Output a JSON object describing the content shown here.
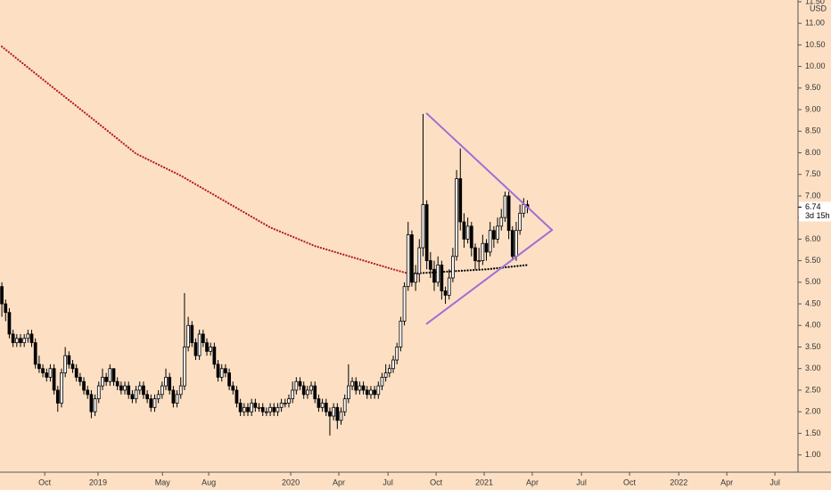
{
  "chart_data": {
    "type": "candlestick",
    "unit": "USD",
    "background": "#fde0c4",
    "up_color": "#ffffff",
    "down_color": "#000000",
    "candles": [
      [
        4.9,
        5.0,
        4.2,
        4.5
      ],
      [
        4.5,
        4.6,
        4.1,
        4.3
      ],
      [
        4.3,
        4.4,
        3.7,
        3.8
      ],
      [
        3.8,
        3.9,
        3.5,
        3.6
      ],
      [
        3.6,
        3.8,
        3.5,
        3.7
      ],
      [
        3.7,
        3.8,
        3.5,
        3.6
      ],
      [
        3.6,
        3.8,
        3.5,
        3.7
      ],
      [
        3.7,
        3.9,
        3.6,
        3.8
      ],
      [
        3.8,
        3.9,
        3.5,
        3.6
      ],
      [
        3.6,
        3.7,
        3.0,
        3.1
      ],
      [
        3.1,
        3.3,
        2.9,
        3.0
      ],
      [
        3.0,
        3.1,
        2.8,
        2.9
      ],
      [
        2.9,
        3.0,
        2.7,
        2.8
      ],
      [
        2.8,
        3.1,
        2.7,
        3.0
      ],
      [
        3.0,
        3.1,
        2.4,
        2.5
      ],
      [
        2.5,
        2.6,
        2.0,
        2.2
      ],
      [
        2.2,
        3.0,
        2.1,
        2.9
      ],
      [
        2.9,
        3.5,
        2.8,
        3.3
      ],
      [
        3.3,
        3.4,
        3.0,
        3.1
      ],
      [
        3.1,
        3.2,
        2.9,
        3.0
      ],
      [
        3.0,
        3.1,
        2.7,
        2.8
      ],
      [
        2.8,
        2.9,
        2.6,
        2.7
      ],
      [
        2.7,
        2.8,
        2.4,
        2.5
      ],
      [
        2.5,
        2.6,
        2.3,
        2.4
      ],
      [
        2.4,
        2.5,
        1.85,
        2.0
      ],
      [
        2.0,
        2.4,
        1.9,
        2.3
      ],
      [
        2.3,
        2.7,
        2.2,
        2.6
      ],
      [
        2.6,
        3.0,
        2.5,
        2.8
      ],
      [
        2.8,
        2.9,
        2.6,
        2.7
      ],
      [
        2.7,
        3.1,
        2.6,
        3.0
      ],
      [
        3.0,
        3.0,
        2.6,
        2.7
      ],
      [
        2.7,
        2.8,
        2.5,
        2.6
      ],
      [
        2.6,
        2.7,
        2.4,
        2.5
      ],
      [
        2.5,
        2.7,
        2.4,
        2.6
      ],
      [
        2.6,
        2.7,
        2.3,
        2.4
      ],
      [
        2.4,
        2.5,
        2.2,
        2.3
      ],
      [
        2.3,
        2.6,
        2.2,
        2.5
      ],
      [
        2.5,
        2.7,
        2.4,
        2.6
      ],
      [
        2.6,
        2.7,
        2.3,
        2.4
      ],
      [
        2.4,
        2.5,
        2.2,
        2.3
      ],
      [
        2.3,
        2.4,
        2.0,
        2.1
      ],
      [
        2.1,
        2.4,
        2.0,
        2.3
      ],
      [
        2.3,
        2.5,
        2.2,
        2.4
      ],
      [
        2.4,
        2.7,
        2.3,
        2.6
      ],
      [
        2.6,
        3.0,
        2.5,
        2.8
      ],
      [
        2.8,
        2.9,
        2.4,
        2.5
      ],
      [
        2.5,
        2.6,
        2.1,
        2.2
      ],
      [
        2.2,
        2.5,
        2.1,
        2.4
      ],
      [
        2.4,
        2.8,
        2.3,
        2.6
      ],
      [
        2.6,
        4.75,
        2.5,
        3.5
      ],
      [
        3.5,
        4.2,
        3.4,
        4.0
      ],
      [
        4.0,
        4.1,
        3.5,
        3.6
      ],
      [
        3.6,
        3.7,
        3.2,
        3.3
      ],
      [
        3.3,
        3.9,
        3.2,
        3.8
      ],
      [
        3.8,
        3.9,
        3.5,
        3.6
      ],
      [
        3.6,
        3.7,
        3.3,
        3.4
      ],
      [
        3.4,
        3.6,
        3.3,
        3.5
      ],
      [
        3.5,
        3.6,
        3.0,
        3.1
      ],
      [
        3.1,
        3.2,
        2.7,
        2.8
      ],
      [
        2.8,
        3.1,
        2.7,
        3.0
      ],
      [
        3.0,
        3.1,
        2.8,
        2.9
      ],
      [
        2.9,
        3.0,
        2.5,
        2.6
      ],
      [
        2.6,
        2.7,
        2.4,
        2.5
      ],
      [
        2.5,
        2.6,
        2.1,
        2.2
      ],
      [
        2.2,
        2.3,
        1.9,
        2.0
      ],
      [
        2.0,
        2.2,
        1.9,
        2.1
      ],
      [
        2.1,
        2.2,
        1.9,
        2.0
      ],
      [
        2.0,
        2.3,
        1.9,
        2.2
      ],
      [
        2.2,
        2.3,
        2.0,
        2.1
      ],
      [
        2.1,
        2.2,
        2.0,
        2.1
      ],
      [
        2.1,
        2.2,
        1.9,
        2.0
      ],
      [
        2.0,
        2.1,
        1.9,
        2.0
      ],
      [
        2.0,
        2.2,
        1.9,
        2.1
      ],
      [
        2.1,
        2.2,
        1.9,
        2.0
      ],
      [
        2.0,
        2.2,
        1.9,
        2.1
      ],
      [
        2.1,
        2.3,
        2.0,
        2.2
      ],
      [
        2.2,
        2.3,
        2.1,
        2.2
      ],
      [
        2.2,
        2.4,
        2.1,
        2.3
      ],
      [
        2.3,
        2.7,
        2.2,
        2.5
      ],
      [
        2.5,
        2.8,
        2.4,
        2.7
      ],
      [
        2.7,
        2.8,
        2.5,
        2.6
      ],
      [
        2.6,
        2.7,
        2.3,
        2.4
      ],
      [
        2.4,
        2.6,
        2.3,
        2.5
      ],
      [
        2.5,
        2.7,
        2.4,
        2.6
      ],
      [
        2.6,
        2.7,
        2.2,
        2.3
      ],
      [
        2.3,
        2.4,
        2.0,
        2.1
      ],
      [
        2.1,
        2.3,
        2.0,
        2.2
      ],
      [
        2.2,
        2.3,
        1.9,
        2.0
      ],
      [
        2.0,
        2.1,
        1.45,
        1.9
      ],
      [
        1.9,
        2.2,
        1.8,
        2.1
      ],
      [
        2.1,
        2.2,
        1.6,
        1.8
      ],
      [
        1.8,
        2.1,
        1.7,
        2.0
      ],
      [
        2.0,
        2.4,
        1.9,
        2.3
      ],
      [
        2.3,
        3.1,
        2.2,
        2.6
      ],
      [
        2.6,
        2.8,
        2.5,
        2.7
      ],
      [
        2.7,
        2.8,
        2.4,
        2.5
      ],
      [
        2.5,
        2.7,
        2.4,
        2.6
      ],
      [
        2.6,
        2.7,
        2.4,
        2.5
      ],
      [
        2.5,
        2.6,
        2.3,
        2.4
      ],
      [
        2.4,
        2.6,
        2.3,
        2.5
      ],
      [
        2.5,
        2.6,
        2.3,
        2.4
      ],
      [
        2.4,
        2.7,
        2.3,
        2.6
      ],
      [
        2.6,
        2.9,
        2.5,
        2.8
      ],
      [
        2.8,
        3.1,
        2.7,
        2.9
      ],
      [
        2.9,
        3.1,
        2.8,
        3.0
      ],
      [
        3.0,
        3.3,
        2.9,
        3.2
      ],
      [
        3.2,
        3.6,
        3.1,
        3.5
      ],
      [
        3.5,
        4.2,
        3.4,
        4.1
      ],
      [
        4.1,
        5.0,
        4.0,
        4.9
      ],
      [
        4.9,
        6.4,
        4.8,
        6.1
      ],
      [
        6.1,
        6.2,
        4.9,
        5.0
      ],
      [
        5.0,
        5.4,
        4.8,
        5.2
      ],
      [
        5.2,
        6.0,
        5.0,
        5.8
      ],
      [
        5.8,
        8.9,
        5.6,
        6.8
      ],
      [
        6.8,
        6.9,
        5.3,
        5.5
      ],
      [
        5.5,
        5.7,
        5.1,
        5.3
      ],
      [
        5.3,
        5.5,
        4.8,
        5.0
      ],
      [
        5.0,
        5.6,
        4.9,
        5.4
      ],
      [
        5.4,
        5.5,
        4.6,
        4.8
      ],
      [
        4.8,
        4.9,
        4.5,
        4.7
      ],
      [
        4.7,
        5.3,
        4.6,
        5.1
      ],
      [
        5.1,
        5.8,
        5.0,
        5.6
      ],
      [
        5.6,
        7.6,
        5.5,
        7.4
      ],
      [
        7.4,
        8.1,
        6.2,
        6.4
      ],
      [
        6.4,
        6.6,
        5.8,
        6.0
      ],
      [
        6.0,
        6.5,
        5.9,
        6.3
      ],
      [
        6.3,
        6.4,
        5.6,
        5.8
      ],
      [
        5.8,
        5.9,
        5.3,
        5.5
      ],
      [
        5.5,
        5.8,
        5.3,
        5.5
      ],
      [
        5.5,
        6.1,
        5.4,
        5.9
      ],
      [
        5.9,
        6.0,
        5.5,
        5.7
      ],
      [
        5.7,
        6.4,
        5.6,
        6.2
      ],
      [
        6.2,
        6.3,
        5.8,
        6.0
      ],
      [
        6.0,
        6.5,
        5.9,
        6.3
      ],
      [
        6.3,
        6.7,
        6.2,
        6.5
      ],
      [
        6.5,
        7.1,
        6.4,
        7.0
      ],
      [
        7.0,
        7.1,
        6.0,
        6.2
      ],
      [
        6.2,
        6.3,
        5.5,
        5.6
      ],
      [
        5.6,
        6.4,
        5.5,
        6.2
      ],
      [
        6.2,
        6.8,
        6.1,
        6.6
      ],
      [
        6.6,
        6.95,
        6.5,
        6.8
      ],
      [
        6.8,
        6.9,
        6.6,
        6.74
      ]
    ],
    "moving_averages": [
      {
        "color": "#b71c1c",
        "x": [
          0,
          12,
          24,
          36,
          48,
          60,
          72,
          84,
          96,
          105,
          110
        ],
        "values": [
          10.46,
          9.63,
          8.81,
          7.98,
          7.47,
          6.87,
          6.27,
          5.84,
          5.53,
          5.3,
          5.18
        ]
      },
      {
        "color": "#000000",
        "x": [
          110,
          120,
          130,
          141
        ],
        "values": [
          5.2,
          5.25,
          5.3,
          5.4
        ]
      }
    ],
    "trendlines": [
      {
        "color": "#9c6fd6",
        "x": [
          114,
          147.6
        ],
        "values": [
          8.91,
          6.21
        ]
      },
      {
        "color": "#9c6fd6",
        "x": [
          114,
          147.6
        ],
        "values": [
          4.04,
          6.21
        ]
      }
    ],
    "last_price": 6.74,
    "countdown": "3d 15h",
    "xlim": [
      -0.5,
      213.6
    ],
    "xticks": [
      {
        "value": 11.5,
        "label": "Oct"
      },
      {
        "value": 25.8,
        "label": "2019"
      },
      {
        "value": 43.1,
        "label": "May"
      },
      {
        "value": 55.5,
        "label": "Aug"
      },
      {
        "value": 77.5,
        "label": "2020"
      },
      {
        "value": 90.4,
        "label": "Apr"
      },
      {
        "value": 103.6,
        "label": "Jul"
      },
      {
        "value": 116.5,
        "label": "Oct"
      },
      {
        "value": 129.4,
        "label": "2021"
      },
      {
        "value": 142.3,
        "label": "Apr"
      },
      {
        "value": 155.5,
        "label": "Jul"
      },
      {
        "value": 168.4,
        "label": "Oct"
      },
      {
        "value": 181.6,
        "label": "2022"
      },
      {
        "value": 194.5,
        "label": "Apr"
      },
      {
        "value": 207.4,
        "label": "Jul"
      }
    ],
    "ylim": [
      0.6,
      11.54
    ],
    "yticks": [
      {
        "value": 1,
        "label": "1.00"
      },
      {
        "value": 1.5,
        "label": "1.50"
      },
      {
        "value": 2,
        "label": "2.00"
      },
      {
        "value": 2.5,
        "label": "2.50"
      },
      {
        "value": 3,
        "label": "3.00"
      },
      {
        "value": 3.5,
        "label": "3.50"
      },
      {
        "value": 4,
        "label": "4.00"
      },
      {
        "value": 4.5,
        "label": "4.50"
      },
      {
        "value": 5,
        "label": "5.00"
      },
      {
        "value": 5.5,
        "label": "5.50"
      },
      {
        "value": 6,
        "label": "6.00"
      },
      {
        "value": 6.5,
        "label": "6.50"
      },
      {
        "value": 7,
        "label": "7.00"
      },
      {
        "value": 7.5,
        "label": "7.50"
      },
      {
        "value": 8,
        "label": "8.00"
      },
      {
        "value": 8.5,
        "label": "8.50"
      },
      {
        "value": 9,
        "label": "9.00"
      },
      {
        "value": 9.5,
        "label": "9.50"
      },
      {
        "value": 10,
        "label": "10.00"
      },
      {
        "value": 10.5,
        "label": "10.50"
      },
      {
        "value": 11,
        "label": "11.00"
      },
      {
        "value": 11.5,
        "label": "11.50"
      }
    ],
    "grid": false
  }
}
